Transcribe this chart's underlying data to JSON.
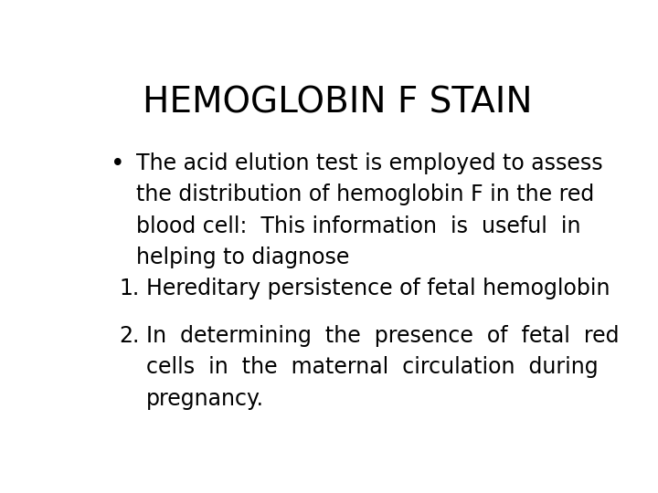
{
  "title": "HEMOGLOBIN F STAIN",
  "title_fontsize": 28,
  "background_color": "#ffffff",
  "text_color": "#000000",
  "font_family": "DejaVu Sans",
  "bullet_text_lines": [
    "The acid elution test is employed to assess",
    "the distribution of hemoglobin F in the red",
    "blood cell:  This information  is  useful  in",
    "helping to diagnose"
  ],
  "numbered_items": [
    [
      "Hereditary persistence of fetal hemoglobin"
    ],
    [
      "In  determining  the  presence  of  fetal  red",
      "cells  in  the  maternal  circulation  during",
      "pregnancy."
    ]
  ],
  "content_fontsize": 17,
  "linespacing": 1.55
}
